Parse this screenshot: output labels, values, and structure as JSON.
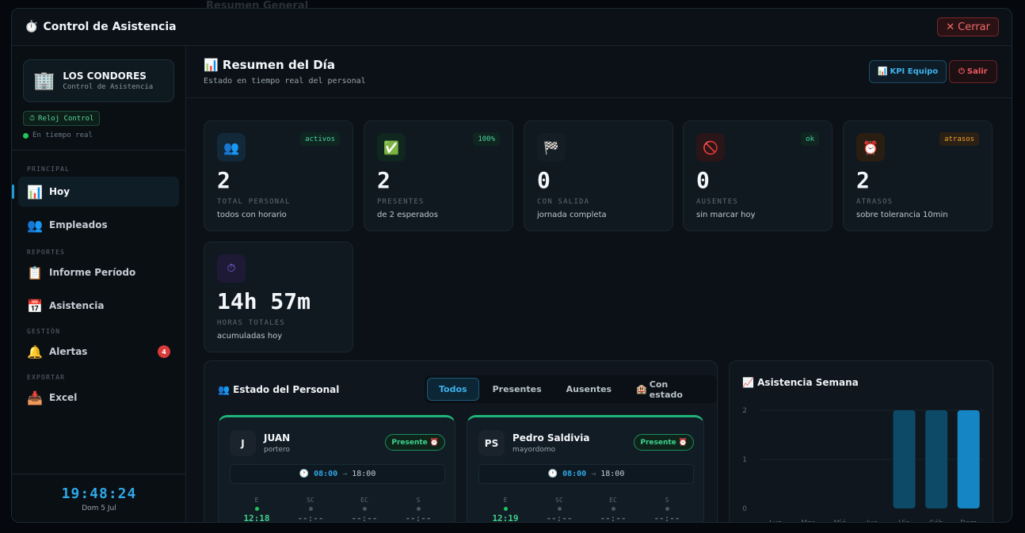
{
  "background": {
    "ghost_title": "Resumen General"
  },
  "modal": {
    "title": "Control de Asistencia",
    "title_icon": "stopwatch-icon",
    "close_label": "Cerrar"
  },
  "sidebar": {
    "brand_name": "LOS CONDORES",
    "brand_sub": "Control de Asistencia",
    "clock_tag": "Reloj Control",
    "live_label": "En tiempo real",
    "sections": {
      "principal": "PRINCIPAL",
      "reportes": "REPORTES",
      "gestion": "GESTIÓN",
      "exportar": "EXPORTAR"
    },
    "items": {
      "hoy": "Hoy",
      "empleados": "Empleados",
      "informe": "Informe Período",
      "asistencia": "Asistencia",
      "alertas": "Alertas",
      "alertas_count": "4",
      "excel": "Excel"
    },
    "clock": {
      "time": "19:48:24",
      "date": "Dom 5 Jul"
    }
  },
  "main": {
    "title": "Resumen del Día",
    "subtitle": "Estado en tiempo real del personal",
    "kpi_button": "KPI Equipo",
    "exit_button": "Salir"
  },
  "cards": [
    {
      "value": "2",
      "label": "TOTAL PERSONAL",
      "desc": "todos con horario",
      "tag": "activos",
      "icon": "people-icon",
      "tag_color": "#4fd1a0",
      "icon_bg": "#12293a"
    },
    {
      "value": "2",
      "label": "PRESENTES",
      "desc": "de 2 esperados",
      "tag": "100%",
      "icon": "check-icon",
      "tag_color": "#4fd1a0",
      "icon_bg": "#10271f"
    },
    {
      "value": "0",
      "label": "CON SALIDA",
      "desc": "jornada completa",
      "tag": "",
      "icon": "checkered-flag-icon",
      "tag_color": "",
      "icon_bg": "#141c24"
    },
    {
      "value": "0",
      "label": "AUSENTES",
      "desc": "sin marcar hoy",
      "tag": "ok",
      "icon": "prohibited-icon",
      "tag_color": "#4fd1a0",
      "icon_bg": "#2a1518"
    },
    {
      "value": "2",
      "label": "ATRASOS",
      "desc": "sobre tolerancia 10min",
      "tag": "atrasos",
      "icon": "alarm-clock-icon",
      "tag_color": "#f0a23a",
      "icon_bg": "#2a1e12"
    },
    {
      "value": "14h 57m",
      "label": "HORAS TOTALES",
      "desc": "acumuladas hoy",
      "tag": "",
      "icon": "timer-icon",
      "tag_color": "",
      "icon_bg": "#1e1a36"
    }
  ],
  "staff_panel": {
    "title": "Estado del Personal",
    "filters": [
      "Todos",
      "Presentes",
      "Ausentes",
      "Con estado"
    ],
    "active_filter": 0,
    "employees": [
      {
        "initial": "J",
        "name": "JUAN",
        "role": "portero",
        "status": "Presente",
        "start": "08:00",
        "end": "18:00",
        "marks": [
          {
            "label": "E",
            "time": "12:18",
            "on": true
          },
          {
            "label": "SC",
            "time": "--:--",
            "on": false
          },
          {
            "label": "EC",
            "time": "--:--",
            "on": false
          },
          {
            "label": "S",
            "time": "--:--",
            "on": false
          }
        ]
      },
      {
        "initial": "PS",
        "name": "Pedro Saldivia",
        "role": "mayordomo",
        "status": "Presente",
        "start": "08:00",
        "end": "18:00",
        "marks": [
          {
            "label": "E",
            "time": "12:19",
            "on": true
          },
          {
            "label": "SC",
            "time": "--:--",
            "on": false
          },
          {
            "label": "EC",
            "time": "--:--",
            "on": false
          },
          {
            "label": "S",
            "time": "--:--",
            "on": false
          }
        ]
      }
    ]
  },
  "chart_data": {
    "type": "bar",
    "title": "Asistencia Semana",
    "categories": [
      "Lun",
      "Mar",
      "Mié",
      "Jue",
      "Vie",
      "Sáb",
      "Dom"
    ],
    "values": [
      0,
      0,
      0,
      0,
      2,
      2,
      2
    ],
    "ylim": [
      0,
      2
    ],
    "yticks": [
      0,
      1,
      2
    ],
    "grid": true,
    "colors": {
      "past": "#0c4a68",
      "today": "#1585c4"
    },
    "today_index": 6
  }
}
